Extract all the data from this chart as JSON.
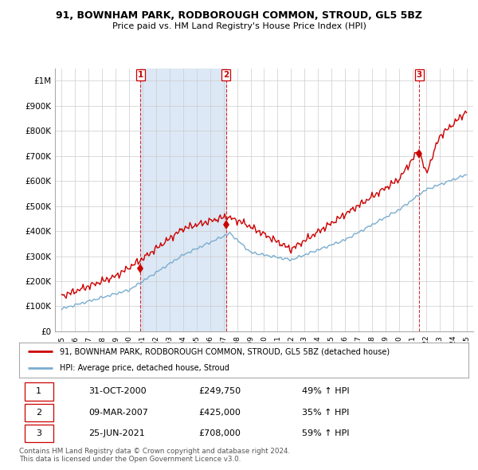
{
  "title": "91, BOWNHAM PARK, RODBOROUGH COMMON, STROUD, GL5 5BZ",
  "subtitle": "Price paid vs. HM Land Registry's House Price Index (HPI)",
  "property_label": "91, BOWNHAM PARK, RODBOROUGH COMMON, STROUD, GL5 5BZ (detached house)",
  "hpi_label": "HPI: Average price, detached house, Stroud",
  "sale_dates_num": [
    2000.83,
    2007.19,
    2021.49
  ],
  "sale_prices": [
    249750,
    425000,
    708000
  ],
  "sale_labels": [
    "1",
    "2",
    "3"
  ],
  "table_rows": [
    [
      "1",
      "31-OCT-2000",
      "£249,750",
      "49% ↑ HPI"
    ],
    [
      "2",
      "09-MAR-2007",
      "£425,000",
      "35% ↑ HPI"
    ],
    [
      "3",
      "25-JUN-2021",
      "£708,000",
      "59% ↑ HPI"
    ]
  ],
  "footnote1": "Contains HM Land Registry data © Crown copyright and database right 2024.",
  "footnote2": "This data is licensed under the Open Government Licence v3.0.",
  "property_color": "#cc0000",
  "hpi_color": "#7aadcf",
  "shade_color": "#dce8f5",
  "vline_color": "#cc0000",
  "background_color": "#ffffff",
  "grid_color": "#cccccc",
  "ylim": [
    0,
    1050000
  ],
  "yticks": [
    0,
    100000,
    200000,
    300000,
    400000,
    500000,
    600000,
    700000,
    800000,
    900000,
    1000000
  ],
  "ytick_labels": [
    "£0",
    "£100K",
    "£200K",
    "£300K",
    "£400K",
    "£500K",
    "£600K",
    "£700K",
    "£800K",
    "£900K",
    "£1M"
  ],
  "xlim_start": 1994.5,
  "xlim_end": 2025.5
}
